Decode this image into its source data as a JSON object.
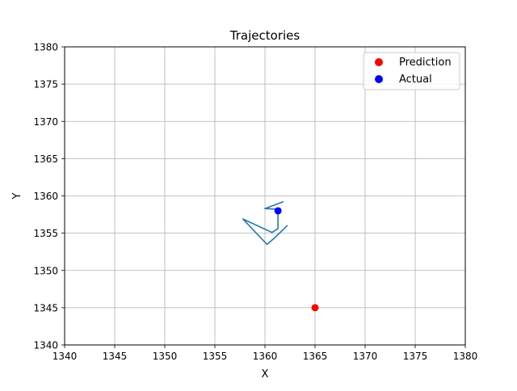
{
  "chart_data": {
    "type": "scatter",
    "title": "Trajectories",
    "xlabel": "X",
    "ylabel": "Y",
    "xlim": [
      1340,
      1380
    ],
    "ylim": [
      1340,
      1380
    ],
    "xticks": [
      1340,
      1345,
      1350,
      1355,
      1360,
      1365,
      1370,
      1375,
      1380
    ],
    "yticks": [
      1340,
      1345,
      1350,
      1355,
      1360,
      1365,
      1370,
      1375,
      1380
    ],
    "xtick_labels": [
      "1340",
      "1345",
      "1350",
      "1355",
      "1360",
      "1365",
      "1370",
      "1375",
      "1380"
    ],
    "ytick_labels": [
      "1340",
      "1345",
      "1350",
      "1355",
      "1360",
      "1365",
      "1370",
      "1375",
      "1380"
    ],
    "grid": true,
    "legend_position": "top-right",
    "trajectory": {
      "color": "#1f77b4",
      "x": [
        1362.2,
        1360.9,
        1360.2,
        1357.8,
        1360.7,
        1361.3,
        1361.3,
        1360.0,
        1361.8
      ],
      "y": [
        1356.0,
        1354.3,
        1353.5,
        1356.9,
        1355.1,
        1355.6,
        1358.2,
        1358.3,
        1359.2
      ]
    },
    "series": [
      {
        "name": "Prediction",
        "color": "#ff0000",
        "x": [
          1365.0
        ],
        "y": [
          1345.0
        ]
      },
      {
        "name": "Actual",
        "color": "#0000ff",
        "x": [
          1361.3
        ],
        "y": [
          1358.0
        ]
      }
    ]
  }
}
